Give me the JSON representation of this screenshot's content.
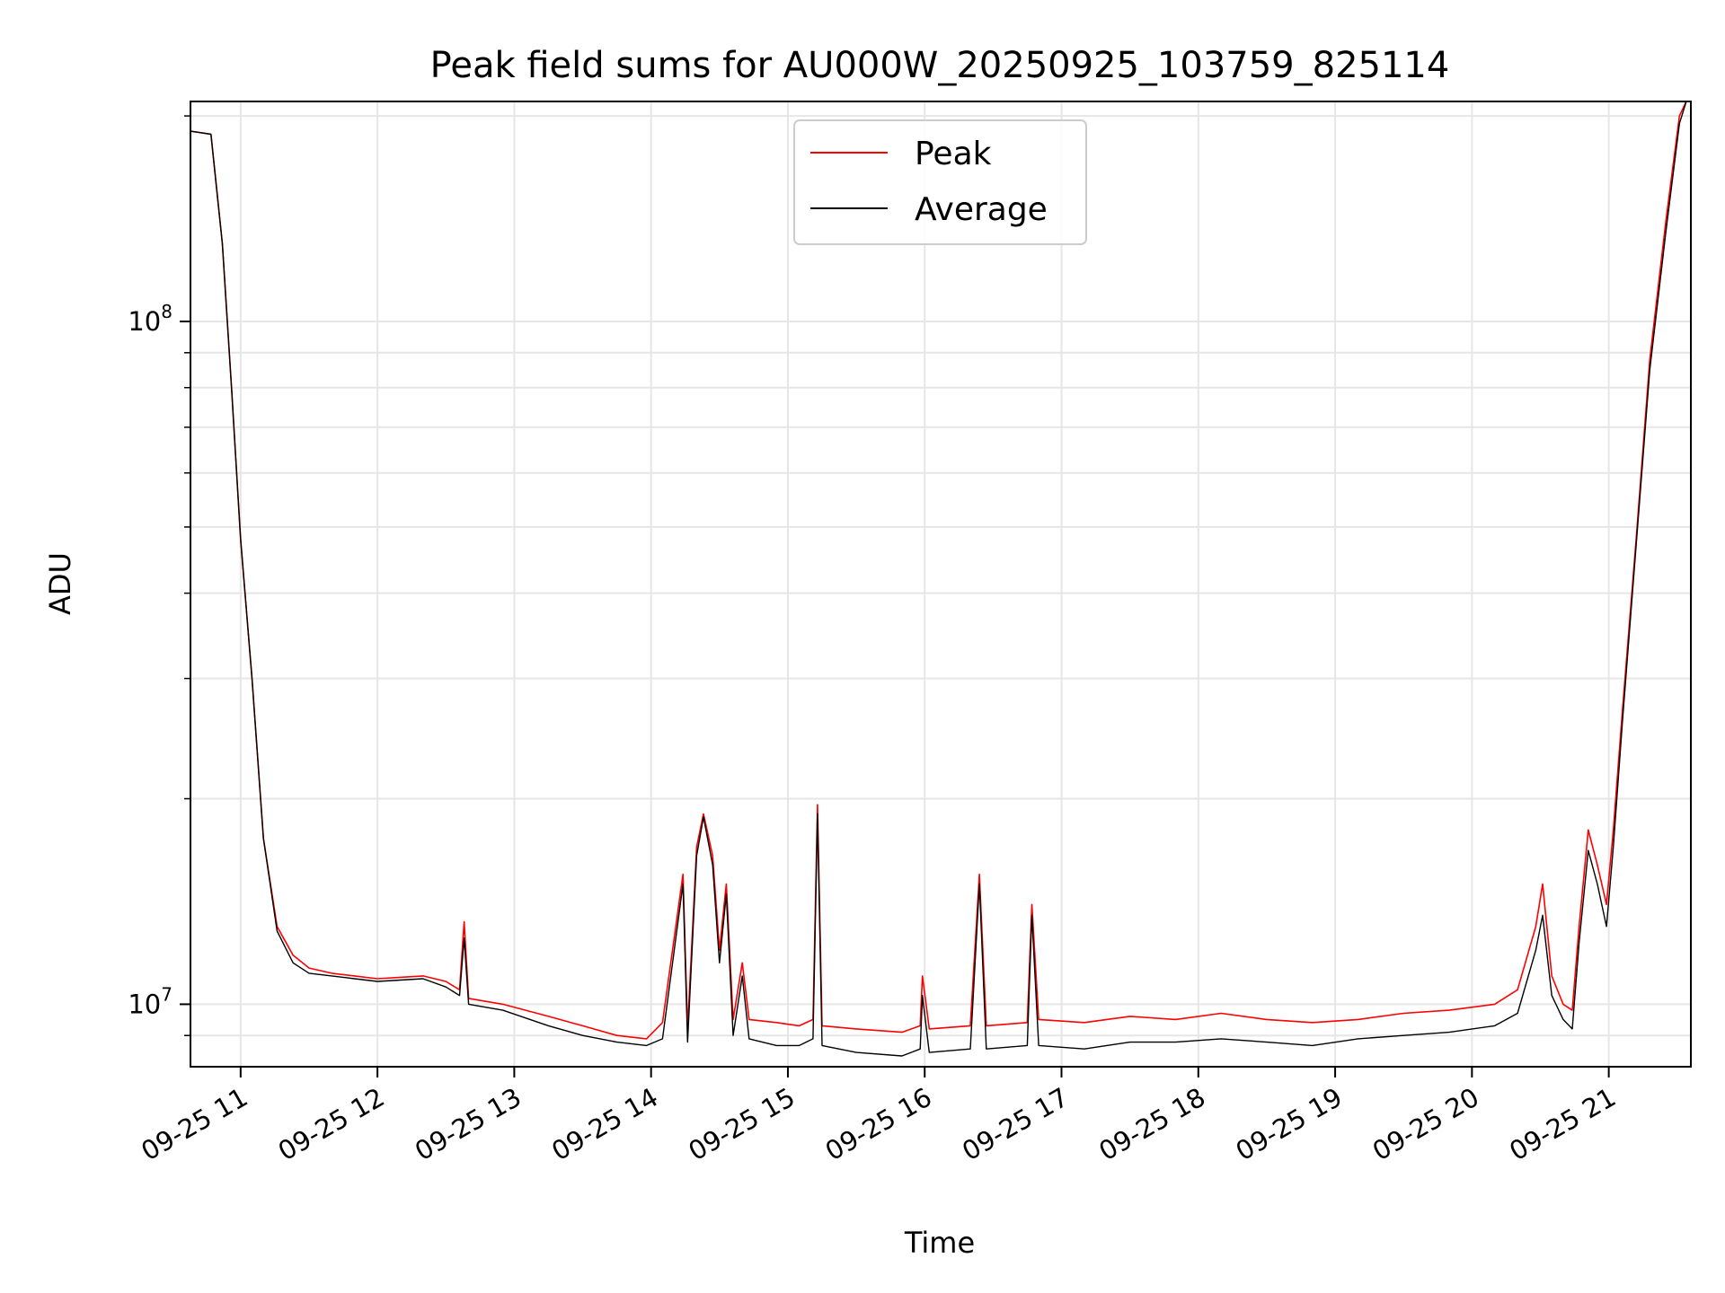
{
  "chart_data": {
    "type": "line",
    "title": "Peak field sums for AU000W_20250925_103759_825114",
    "xlabel": "Time",
    "ylabel": "ADU",
    "xscale": "time",
    "yscale": "log",
    "grid": true,
    "legend_position": "top-center",
    "xlim": [
      "2025-09-25 10:38",
      "2025-09-25 21:36"
    ],
    "ylim": [
      8100000,
      210000000
    ],
    "x_ticks": [
      {
        "value": "2025-09-25 11:00",
        "label": "09-25 11"
      },
      {
        "value": "2025-09-25 12:00",
        "label": "09-25 12"
      },
      {
        "value": "2025-09-25 13:00",
        "label": "09-25 13"
      },
      {
        "value": "2025-09-25 14:00",
        "label": "09-25 14"
      },
      {
        "value": "2025-09-25 15:00",
        "label": "09-25 15"
      },
      {
        "value": "2025-09-25 16:00",
        "label": "09-25 16"
      },
      {
        "value": "2025-09-25 17:00",
        "label": "09-25 17"
      },
      {
        "value": "2025-09-25 18:00",
        "label": "09-25 18"
      },
      {
        "value": "2025-09-25 19:00",
        "label": "09-25 19"
      },
      {
        "value": "2025-09-25 20:00",
        "label": "09-25 20"
      },
      {
        "value": "2025-09-25 21:00",
        "label": "09-25 21"
      }
    ],
    "y_ticks": [
      {
        "value": 10000000,
        "label_base": "10",
        "label_exp": "7"
      },
      {
        "value": 100000000,
        "label_base": "10",
        "label_exp": "8"
      }
    ],
    "colors": {
      "peak": "#ff0000",
      "average": "#000000"
    },
    "series": [
      {
        "name": "Peak",
        "color": "#ff0000",
        "points": [
          [
            "2025-09-25 10:38",
            190000000
          ],
          [
            "2025-09-25 10:47",
            188000000
          ],
          [
            "2025-09-25 10:52",
            130000000
          ],
          [
            "2025-09-25 10:56",
            80000000
          ],
          [
            "2025-09-25 11:00",
            48000000
          ],
          [
            "2025-09-25 11:05",
            30000000
          ],
          [
            "2025-09-25 11:10",
            17500000
          ],
          [
            "2025-09-25 11:16",
            13000000
          ],
          [
            "2025-09-25 11:23",
            11800000
          ],
          [
            "2025-09-25 11:30",
            11300000
          ],
          [
            "2025-09-25 11:40",
            11100000
          ],
          [
            "2025-09-25 11:50",
            11000000
          ],
          [
            "2025-09-25 12:00",
            10900000
          ],
          [
            "2025-09-25 12:10",
            10950000
          ],
          [
            "2025-09-25 12:20",
            11000000
          ],
          [
            "2025-09-25 12:30",
            10800000
          ],
          [
            "2025-09-25 12:36",
            10500000
          ],
          [
            "2025-09-25 12:38",
            13200000
          ],
          [
            "2025-09-25 12:40",
            10200000
          ],
          [
            "2025-09-25 12:55",
            10000000
          ],
          [
            "2025-09-25 13:15",
            9600000
          ],
          [
            "2025-09-25 13:30",
            9300000
          ],
          [
            "2025-09-25 13:45",
            9000000
          ],
          [
            "2025-09-25 13:58",
            8900000
          ],
          [
            "2025-09-25 14:05",
            9400000
          ],
          [
            "2025-09-25 14:14",
            15500000
          ],
          [
            "2025-09-25 14:16",
            9200000
          ],
          [
            "2025-09-25 14:20",
            17000000
          ],
          [
            "2025-09-25 14:23",
            19000000
          ],
          [
            "2025-09-25 14:27",
            16500000
          ],
          [
            "2025-09-25 14:30",
            12000000
          ],
          [
            "2025-09-25 14:33",
            15000000
          ],
          [
            "2025-09-25 14:36",
            9500000
          ],
          [
            "2025-09-25 14:40",
            11500000
          ],
          [
            "2025-09-25 14:43",
            9500000
          ],
          [
            "2025-09-25 14:55",
            9400000
          ],
          [
            "2025-09-25 15:05",
            9300000
          ],
          [
            "2025-09-25 15:11",
            9500000
          ],
          [
            "2025-09-25 15:13",
            19600000
          ],
          [
            "2025-09-25 15:15",
            9300000
          ],
          [
            "2025-09-25 15:30",
            9200000
          ],
          [
            "2025-09-25 15:50",
            9100000
          ],
          [
            "2025-09-25 15:58",
            9300000
          ],
          [
            "2025-09-25 15:59",
            11000000
          ],
          [
            "2025-09-25 16:02",
            9200000
          ],
          [
            "2025-09-25 16:20",
            9300000
          ],
          [
            "2025-09-25 16:24",
            15500000
          ],
          [
            "2025-09-25 16:27",
            9300000
          ],
          [
            "2025-09-25 16:45",
            9400000
          ],
          [
            "2025-09-25 16:47",
            14000000
          ],
          [
            "2025-09-25 16:50",
            9500000
          ],
          [
            "2025-09-25 17:10",
            9400000
          ],
          [
            "2025-09-25 17:30",
            9600000
          ],
          [
            "2025-09-25 17:50",
            9500000
          ],
          [
            "2025-09-25 18:10",
            9700000
          ],
          [
            "2025-09-25 18:30",
            9500000
          ],
          [
            "2025-09-25 18:50",
            9400000
          ],
          [
            "2025-09-25 19:10",
            9500000
          ],
          [
            "2025-09-25 19:30",
            9700000
          ],
          [
            "2025-09-25 19:50",
            9800000
          ],
          [
            "2025-09-25 20:10",
            10000000
          ],
          [
            "2025-09-25 20:20",
            10500000
          ],
          [
            "2025-09-25 20:28",
            13000000
          ],
          [
            "2025-09-25 20:31",
            15000000
          ],
          [
            "2025-09-25 20:35",
            11000000
          ],
          [
            "2025-09-25 20:40",
            10000000
          ],
          [
            "2025-09-25 20:44",
            9800000
          ],
          [
            "2025-09-25 20:47",
            13000000
          ],
          [
            "2025-09-25 20:51",
            18000000
          ],
          [
            "2025-09-25 20:55",
            16000000
          ],
          [
            "2025-09-25 20:59",
            14000000
          ],
          [
            "2025-09-25 21:02",
            18000000
          ],
          [
            "2025-09-25 21:06",
            27000000
          ],
          [
            "2025-09-25 21:12",
            48000000
          ],
          [
            "2025-09-25 21:18",
            88000000
          ],
          [
            "2025-09-25 21:25",
            140000000
          ],
          [
            "2025-09-25 21:31",
            200000000
          ],
          [
            "2025-09-25 21:34",
            210000000
          ]
        ]
      },
      {
        "name": "Average",
        "color": "#000000",
        "points": [
          [
            "2025-09-25 10:38",
            190000000
          ],
          [
            "2025-09-25 10:47",
            188000000
          ],
          [
            "2025-09-25 10:52",
            130000000
          ],
          [
            "2025-09-25 10:56",
            80000000
          ],
          [
            "2025-09-25 11:00",
            48000000
          ],
          [
            "2025-09-25 11:05",
            30000000
          ],
          [
            "2025-09-25 11:10",
            17500000
          ],
          [
            "2025-09-25 11:16",
            12800000
          ],
          [
            "2025-09-25 11:23",
            11500000
          ],
          [
            "2025-09-25 11:30",
            11100000
          ],
          [
            "2025-09-25 11:40",
            11000000
          ],
          [
            "2025-09-25 11:50",
            10900000
          ],
          [
            "2025-09-25 12:00",
            10800000
          ],
          [
            "2025-09-25 12:10",
            10850000
          ],
          [
            "2025-09-25 12:20",
            10900000
          ],
          [
            "2025-09-25 12:30",
            10600000
          ],
          [
            "2025-09-25 12:36",
            10300000
          ],
          [
            "2025-09-25 12:38",
            12500000
          ],
          [
            "2025-09-25 12:40",
            10000000
          ],
          [
            "2025-09-25 12:55",
            9800000
          ],
          [
            "2025-09-25 13:15",
            9300000
          ],
          [
            "2025-09-25 13:30",
            9000000
          ],
          [
            "2025-09-25 13:45",
            8800000
          ],
          [
            "2025-09-25 13:58",
            8700000
          ],
          [
            "2025-09-25 14:05",
            8900000
          ],
          [
            "2025-09-25 14:14",
            15000000
          ],
          [
            "2025-09-25 14:16",
            8800000
          ],
          [
            "2025-09-25 14:20",
            16500000
          ],
          [
            "2025-09-25 14:23",
            18800000
          ],
          [
            "2025-09-25 14:27",
            16000000
          ],
          [
            "2025-09-25 14:30",
            11500000
          ],
          [
            "2025-09-25 14:33",
            14500000
          ],
          [
            "2025-09-25 14:36",
            9000000
          ],
          [
            "2025-09-25 14:40",
            11000000
          ],
          [
            "2025-09-25 14:43",
            8900000
          ],
          [
            "2025-09-25 14:55",
            8700000
          ],
          [
            "2025-09-25 15:05",
            8700000
          ],
          [
            "2025-09-25 15:11",
            8900000
          ],
          [
            "2025-09-25 15:13",
            19000000
          ],
          [
            "2025-09-25 15:15",
            8700000
          ],
          [
            "2025-09-25 15:30",
            8500000
          ],
          [
            "2025-09-25 15:50",
            8400000
          ],
          [
            "2025-09-25 15:58",
            8600000
          ],
          [
            "2025-09-25 15:59",
            10300000
          ],
          [
            "2025-09-25 16:02",
            8500000
          ],
          [
            "2025-09-25 16:20",
            8600000
          ],
          [
            "2025-09-25 16:24",
            15000000
          ],
          [
            "2025-09-25 16:27",
            8600000
          ],
          [
            "2025-09-25 16:45",
            8700000
          ],
          [
            "2025-09-25 16:47",
            13500000
          ],
          [
            "2025-09-25 16:50",
            8700000
          ],
          [
            "2025-09-25 17:10",
            8600000
          ],
          [
            "2025-09-25 17:30",
            8800000
          ],
          [
            "2025-09-25 17:50",
            8800000
          ],
          [
            "2025-09-25 18:10",
            8900000
          ],
          [
            "2025-09-25 18:30",
            8800000
          ],
          [
            "2025-09-25 18:50",
            8700000
          ],
          [
            "2025-09-25 19:10",
            8900000
          ],
          [
            "2025-09-25 19:30",
            9000000
          ],
          [
            "2025-09-25 19:50",
            9100000
          ],
          [
            "2025-09-25 20:10",
            9300000
          ],
          [
            "2025-09-25 20:20",
            9700000
          ],
          [
            "2025-09-25 20:28",
            12000000
          ],
          [
            "2025-09-25 20:31",
            13500000
          ],
          [
            "2025-09-25 20:35",
            10300000
          ],
          [
            "2025-09-25 20:40",
            9500000
          ],
          [
            "2025-09-25 20:44",
            9200000
          ],
          [
            "2025-09-25 20:47",
            12300000
          ],
          [
            "2025-09-25 20:51",
            16800000
          ],
          [
            "2025-09-25 20:55",
            15000000
          ],
          [
            "2025-09-25 20:59",
            13000000
          ],
          [
            "2025-09-25 21:02",
            17000000
          ],
          [
            "2025-09-25 21:06",
            26000000
          ],
          [
            "2025-09-25 21:12",
            47000000
          ],
          [
            "2025-09-25 21:18",
            85000000
          ],
          [
            "2025-09-25 21:25",
            135000000
          ],
          [
            "2025-09-25 21:31",
            195000000
          ],
          [
            "2025-09-25 21:34",
            210000000
          ]
        ]
      }
    ]
  }
}
